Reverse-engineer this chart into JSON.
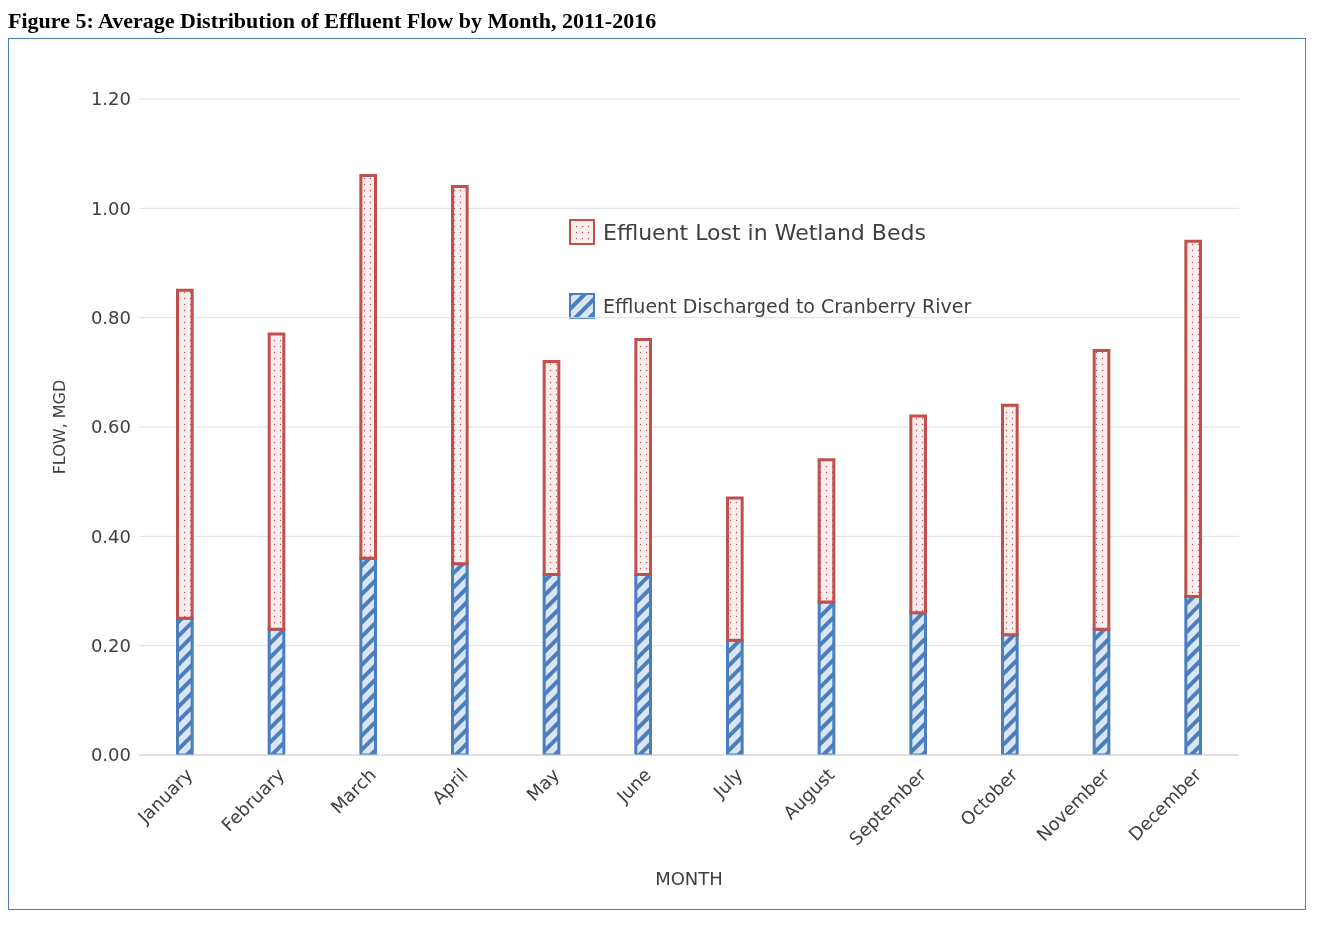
{
  "chart_data": {
    "type": "bar",
    "title": "Figure 5: Average Distribution of Effluent Flow by Month, 2011-2016",
    "xlabel": "MONTH",
    "ylabel": "FLOW, MGD",
    "categories": [
      "January",
      "February",
      "March",
      "April",
      "May",
      "June",
      "July",
      "August",
      "September",
      "October",
      "November",
      "December"
    ],
    "stacked": true,
    "series": [
      {
        "name": "Effluent Discharged to Cranberry River",
        "color": "#4a7ebf",
        "values": [
          0.25,
          0.23,
          0.36,
          0.35,
          0.33,
          0.33,
          0.21,
          0.28,
          0.26,
          0.22,
          0.23,
          0.29
        ]
      },
      {
        "name": "Effluent Lost in Wetland Beds",
        "color": "#c0504d",
        "values": [
          0.6,
          0.54,
          0.7,
          0.69,
          0.39,
          0.43,
          0.26,
          0.26,
          0.36,
          0.42,
          0.51,
          0.65
        ]
      }
    ],
    "ylim": [
      0,
      1.2
    ],
    "yticks": [
      {
        "value": 0,
        "label": "0.00"
      },
      {
        "value": 0.2,
        "label": "0.20"
      },
      {
        "value": 0.4,
        "label": "0.40"
      },
      {
        "value": 0.6,
        "label": "0.60"
      },
      {
        "value": 0.8,
        "label": "0.80"
      },
      {
        "value": 1.0,
        "label": "1.00"
      },
      {
        "value": 1.2,
        "label": "1.20"
      }
    ],
    "grid": "y",
    "legend": "top"
  }
}
